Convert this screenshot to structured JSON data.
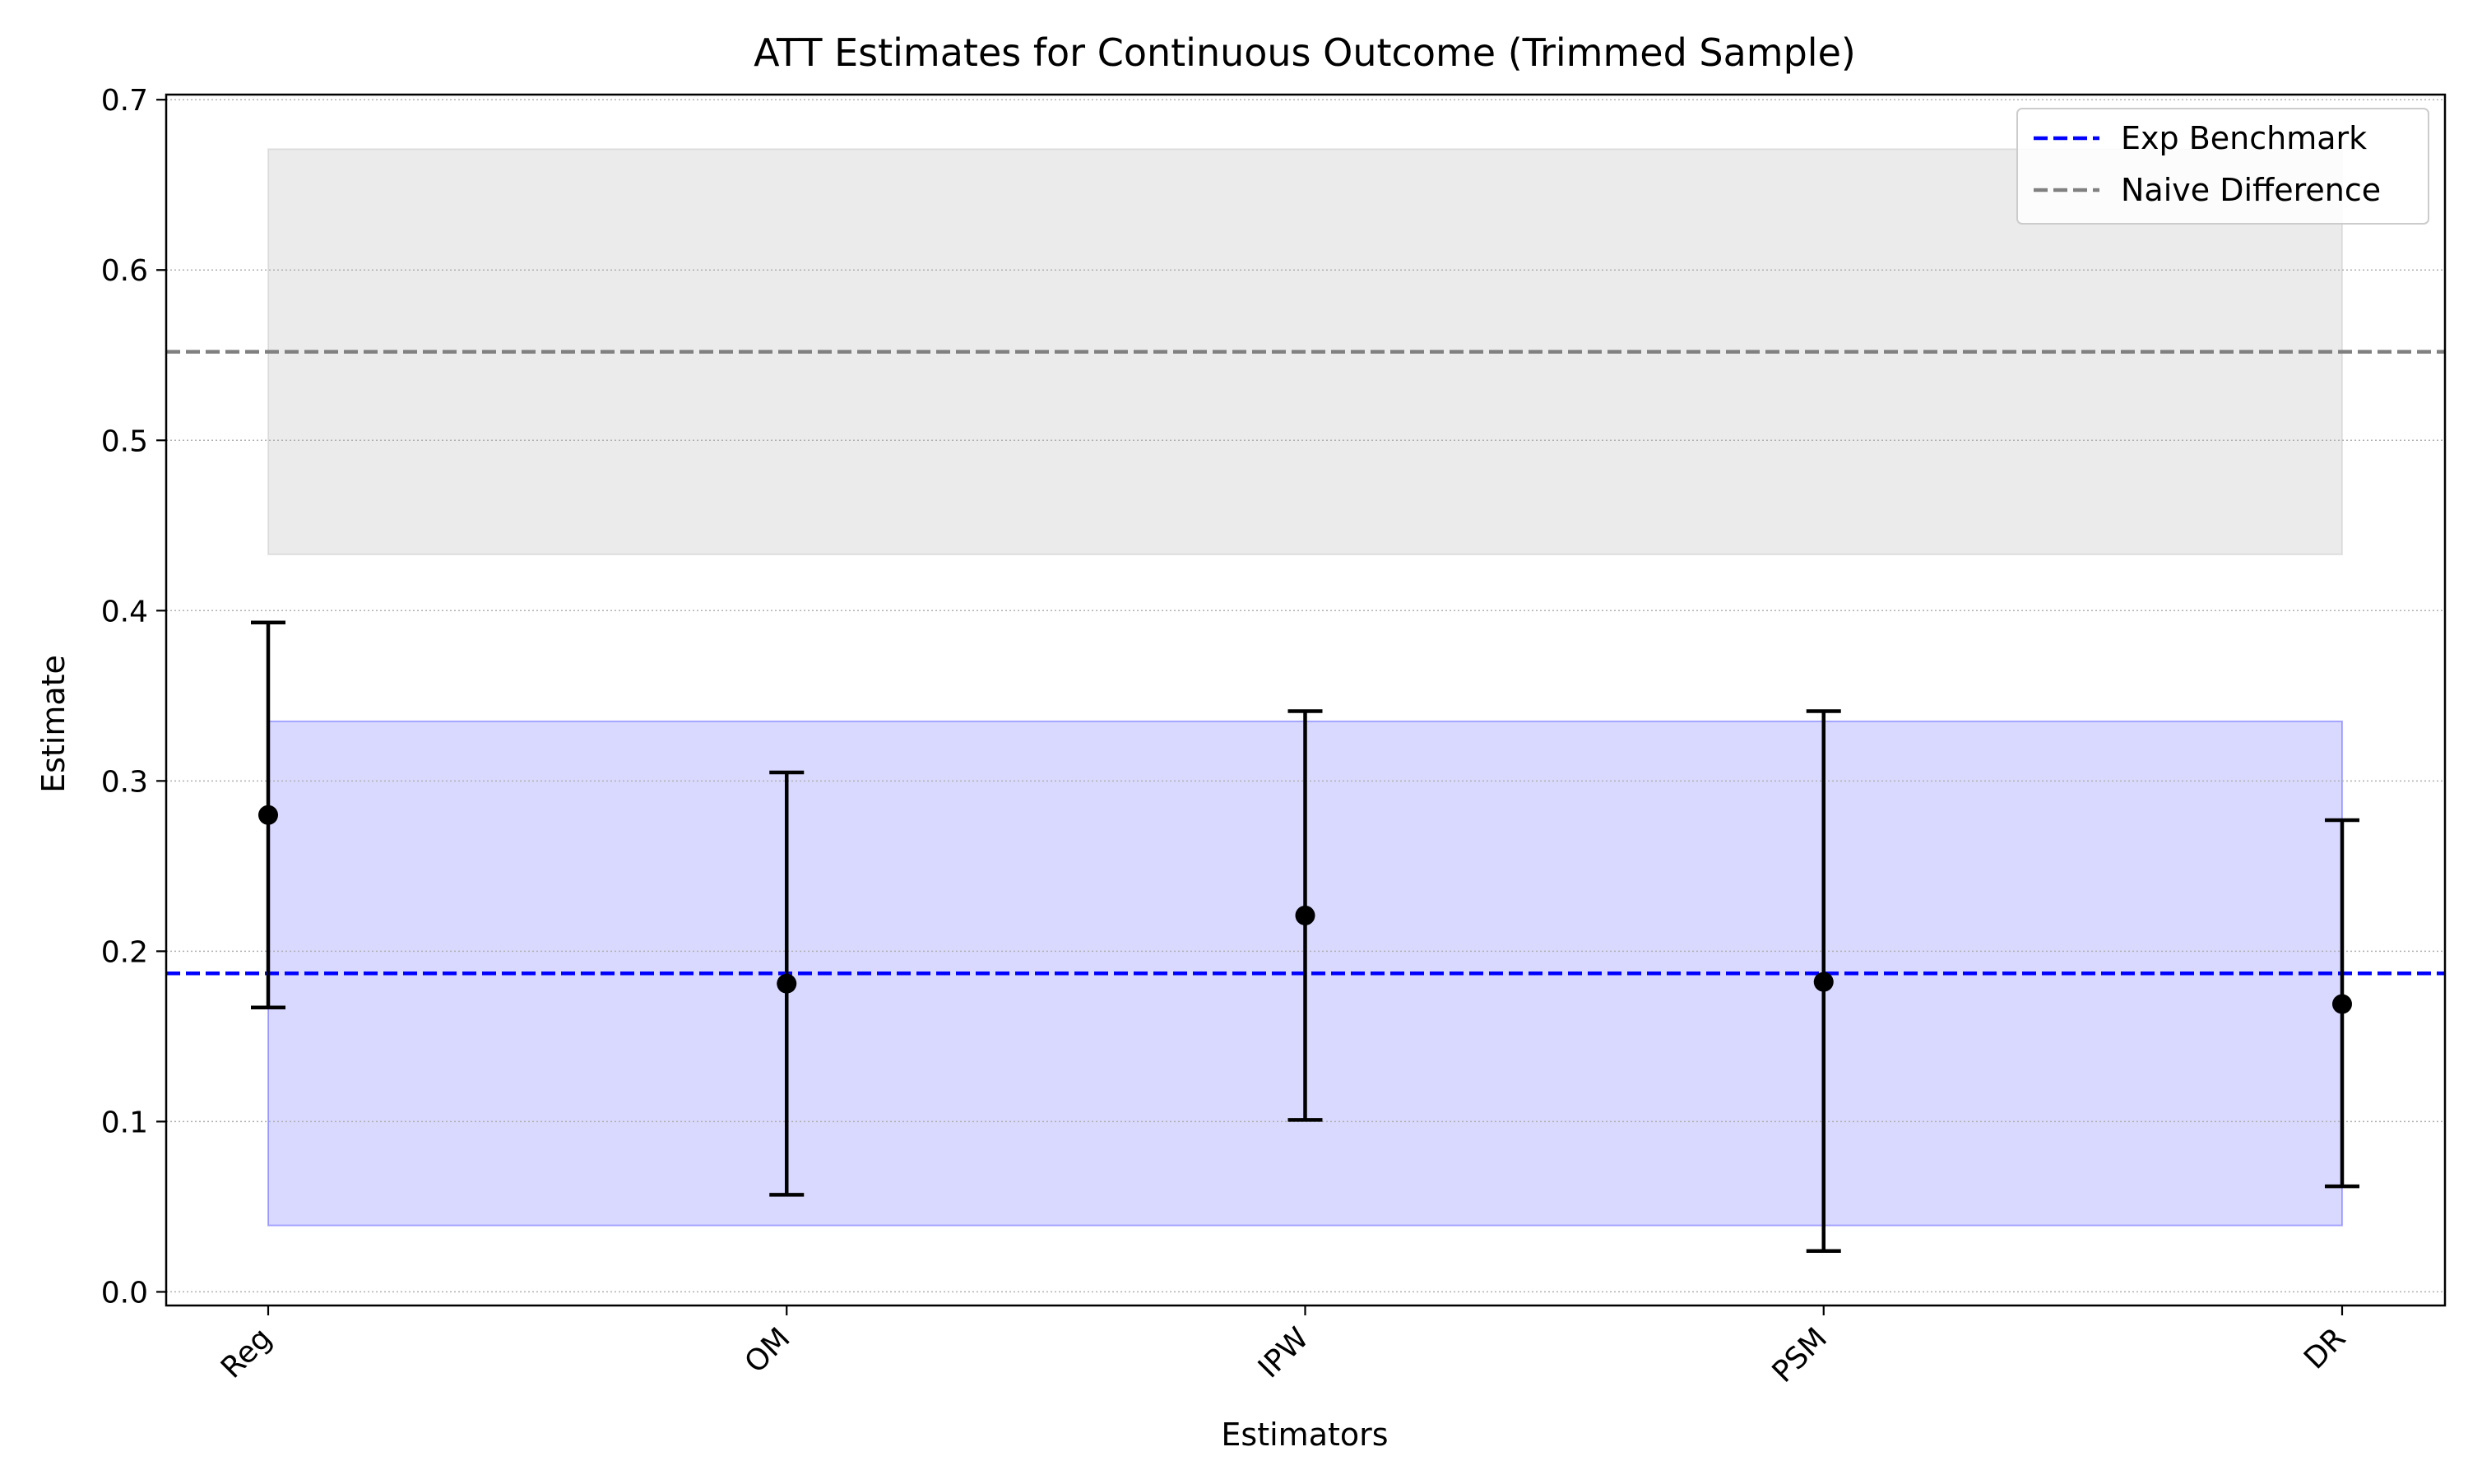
{
  "chart_data": {
    "type": "errorbar",
    "title": "ATT Estimates for Continuous Outcome (Trimmed Sample)",
    "xlabel": "Estimators",
    "ylabel": "Estimate",
    "categories": [
      "Reg",
      "OM",
      "IPW",
      "PSM",
      "DR"
    ],
    "series": [
      {
        "estimates": [
          0.28,
          0.181,
          0.221,
          0.182,
          0.169
        ],
        "ci_lower": [
          0.167,
          0.057,
          0.101,
          0.024,
          0.062
        ],
        "ci_upper": [
          0.393,
          0.305,
          0.341,
          0.341,
          0.277
        ],
        "color": "#000000"
      }
    ],
    "reference_lines": [
      {
        "label": "Exp Benchmark",
        "value": 0.187,
        "color": "#0000ff",
        "style": "dashed",
        "band": [
          0.039,
          0.335
        ],
        "band_color": "#0000ff"
      },
      {
        "label": "Naive Difference",
        "value": 0.552,
        "color": "#808080",
        "style": "dashed",
        "band": [
          0.433,
          0.671
        ],
        "band_color": "#b0b0b0"
      }
    ],
    "yticks": [
      "0.0",
      "0.1",
      "0.2",
      "0.3",
      "0.4",
      "0.5",
      "0.6",
      "0.7"
    ],
    "ylim": [
      -0.008,
      0.703
    ],
    "grid": "y-dotted",
    "legend_position": "top-right"
  }
}
